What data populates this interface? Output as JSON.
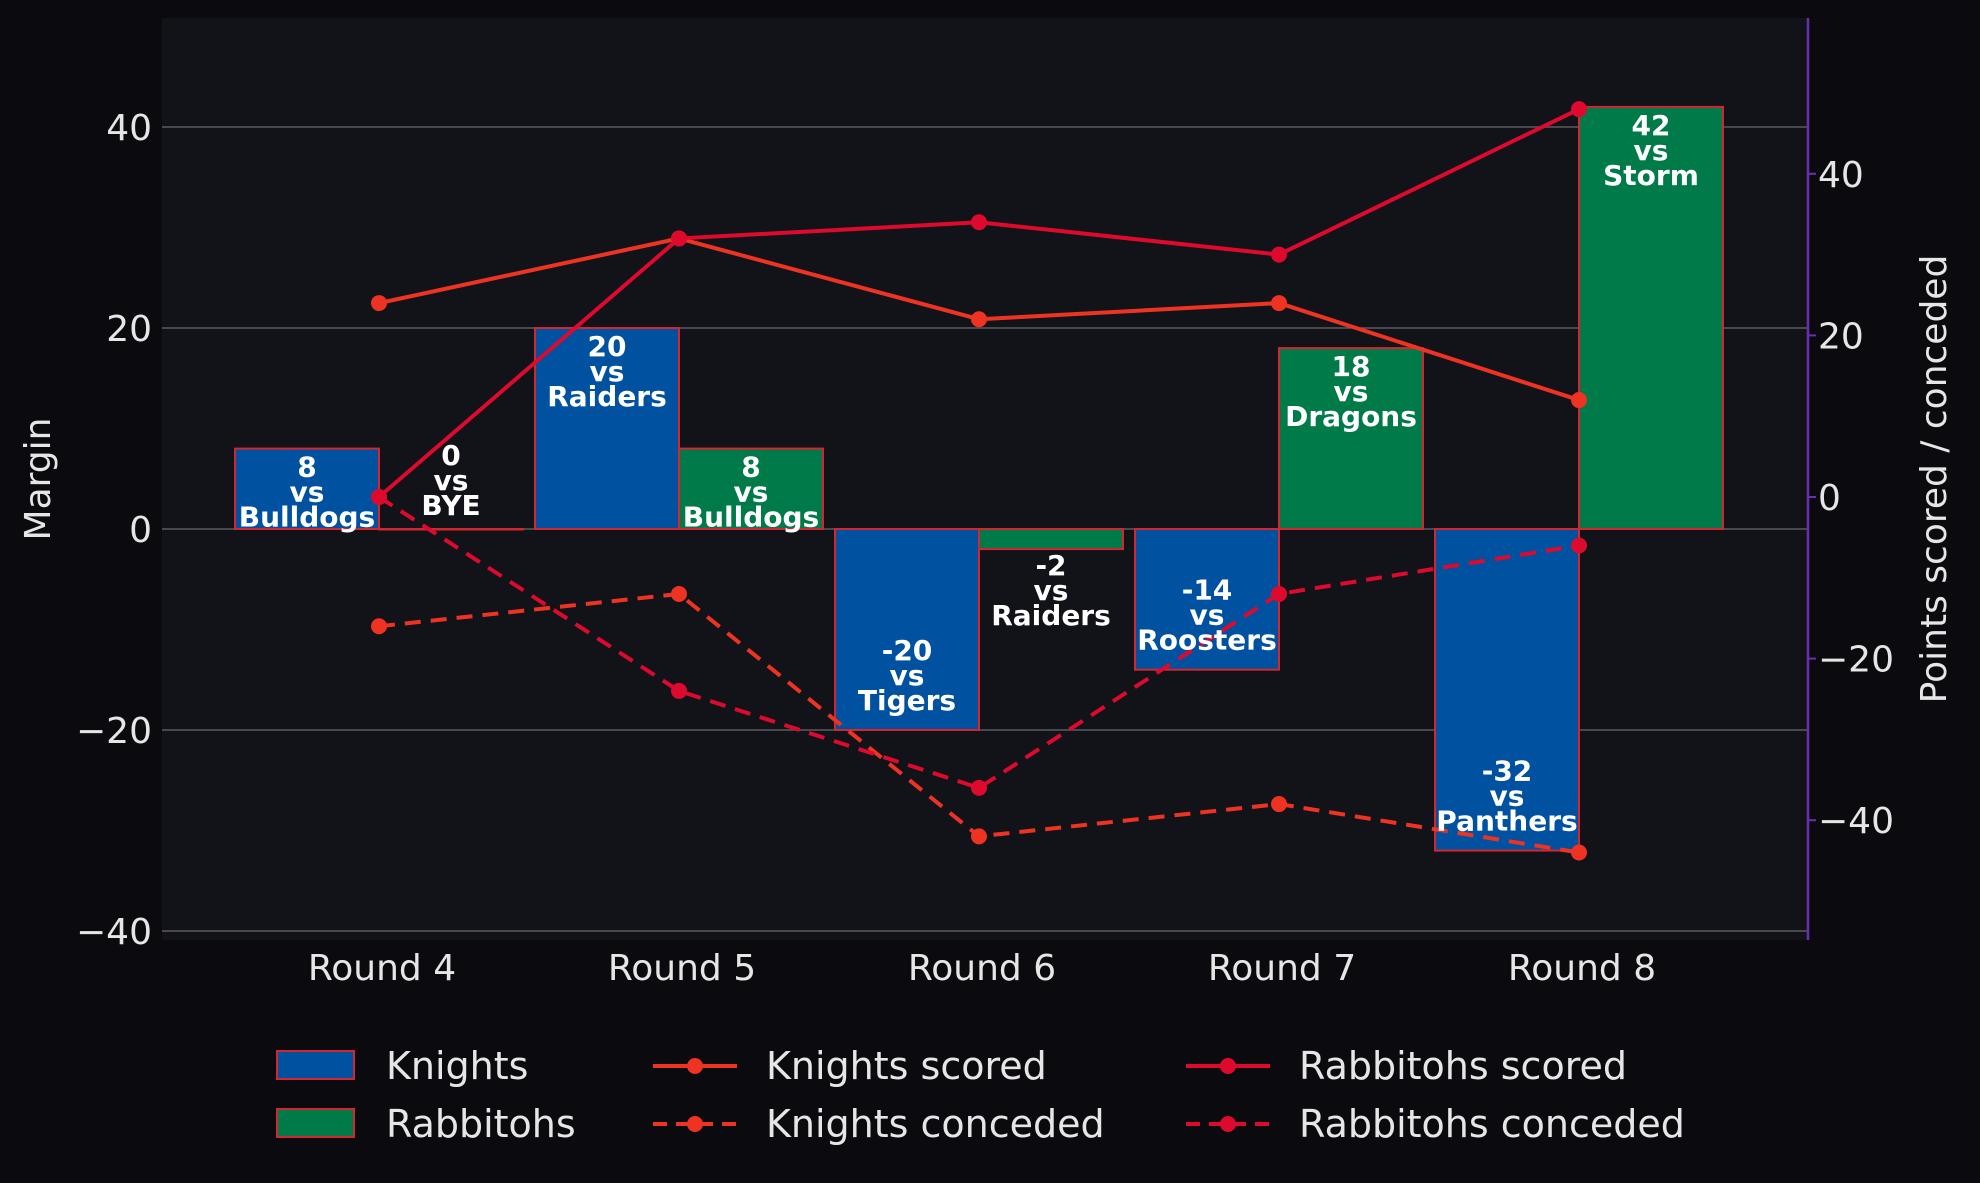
{
  "chart_data": {
    "type": "bar",
    "categories": [
      "Round 4",
      "Round 5",
      "Round 6",
      "Round 7",
      "Round 8"
    ],
    "ylabel": "Margin",
    "y2label": "Points scored / conceded",
    "ylim": [
      -40,
      50
    ],
    "y2lim": [
      -55,
      60
    ],
    "yticks": [
      -40,
      -20,
      0,
      20,
      40
    ],
    "y2ticks": [
      -40,
      -20,
      0,
      20,
      40
    ],
    "grid": true,
    "legend_position": "bottom",
    "bar_series": [
      {
        "name": "Knights",
        "color": "#0052a0",
        "values": [
          8,
          20,
          -20,
          -14,
          -32
        ],
        "opponents": [
          "Bulldogs",
          "Raiders",
          "Tigers",
          "Roosters",
          "Panthers"
        ]
      },
      {
        "name": "Rabbitohs",
        "color": "#007a48",
        "values": [
          0,
          8,
          -2,
          18,
          42
        ],
        "opponents": [
          "BYE",
          "Bulldogs",
          "Raiders",
          "Dragons",
          "Storm"
        ]
      }
    ],
    "line_series": [
      {
        "name": "Knights scored",
        "color": "#ee3322",
        "dashed": false,
        "values": [
          24,
          32,
          22,
          24,
          12
        ]
      },
      {
        "name": "Knights conceded",
        "color": "#ee3322",
        "dashed": true,
        "values": [
          -16,
          -12,
          -42,
          -38,
          -44
        ]
      },
      {
        "name": "Rabbitohs scored",
        "color": "#dd0a2e",
        "dashed": false,
        "values": [
          0,
          32,
          34,
          30,
          48
        ]
      },
      {
        "name": "Rabbitohs conceded",
        "color": "#dd0a2e",
        "dashed": true,
        "values": [
          0,
          -24,
          -36,
          -12,
          -6
        ]
      }
    ],
    "bar_label_connector": "vs"
  },
  "colors": {
    "page_background": "#0b0b0f",
    "plot_background": "#121219",
    "grid": "#5a5a60",
    "text": "#e6e6e6",
    "bar_edge": "#d4262e",
    "right_axis": "#6a2fb0"
  }
}
